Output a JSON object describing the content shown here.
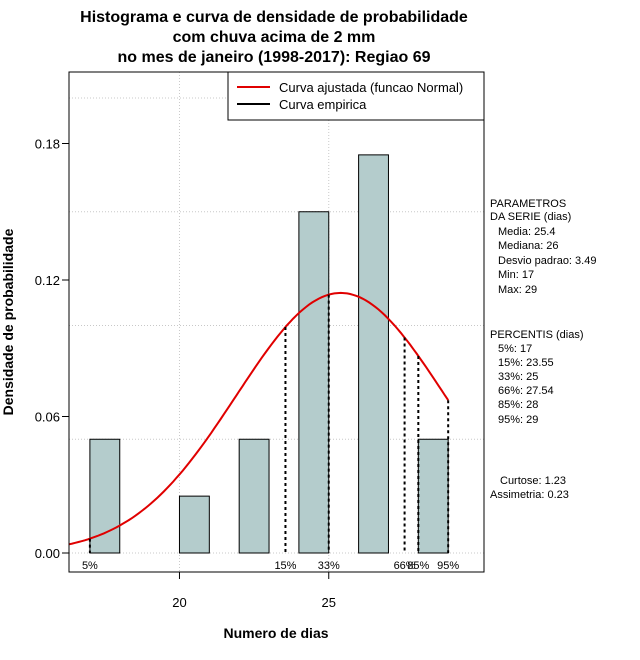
{
  "chart_data": {
    "type": "histogram",
    "title": [
      "Histograma e curva de densidade de probabilidade",
      "com chuva acima de 2 mm",
      "no mes de janeiro (1998-2017): Regiao 69"
    ],
    "xlabel": "Numero de dias",
    "ylabel": "Densidade de probabilidade",
    "xlim": [
      16.3,
      30.2
    ],
    "ylim": [
      0,
      0.2
    ],
    "xticks": [
      20,
      25
    ],
    "yticks": [
      0.0,
      0.06,
      0.12,
      0.18
    ],
    "ytick_labels": [
      "0.00",
      "0.06",
      "0.12",
      "0.18"
    ],
    "grid": true,
    "bins": [
      {
        "start": 17,
        "end": 18,
        "density": 0.05
      },
      {
        "start": 18,
        "end": 19,
        "density": 0.0
      },
      {
        "start": 20,
        "end": 21,
        "density": 0.025
      },
      {
        "start": 22,
        "end": 23,
        "density": 0.05
      },
      {
        "start": 24,
        "end": 25,
        "density": 0.15
      },
      {
        "start": 26,
        "end": 27,
        "density": 0.175
      },
      {
        "start": 28,
        "end": 29,
        "density": 0.05
      }
    ],
    "normal_curve": {
      "name": "Curva ajustada (funcao Normal)",
      "mean": 25.4,
      "sd": 3.49,
      "from": 16.3,
      "to": 29.0,
      "color": "#e00000"
    },
    "percentile_lines": [
      {
        "label": "5%",
        "x": 17
      },
      {
        "label": "15%",
        "x": 23.55
      },
      {
        "label": "33%",
        "x": 25
      },
      {
        "label": "66%",
        "x": 27.54
      },
      {
        "label": "85%",
        "x": 28
      },
      {
        "label": "95%",
        "x": 29
      }
    ],
    "legend": [
      {
        "label": "Curva ajustada (funcao Normal)",
        "color": "#e00000"
      },
      {
        "label": "Curva empirica",
        "color": "#000000"
      }
    ],
    "legend_position": "top-right",
    "bar_color": "#b4cccc"
  },
  "stats": {
    "params_title_1": "PARAMETROS",
    "params_title_2": "DA SERIE (dias)",
    "media": "Media: 25.4",
    "mediana": "Mediana: 26",
    "desvio": "Desvio padrao: 3.49",
    "min": "Min: 17",
    "max": "Max: 29",
    "pct_title": "PERCENTIS (dias)",
    "p5": "5%: 17",
    "p15": "15%: 23.55",
    "p33": "33%: 25",
    "p66": "66%: 27.54",
    "p85": "85%: 28",
    "p95": "95%: 29",
    "curtose": "Curtose: 1.23",
    "assimetria": "Assimetria: 0.23"
  }
}
